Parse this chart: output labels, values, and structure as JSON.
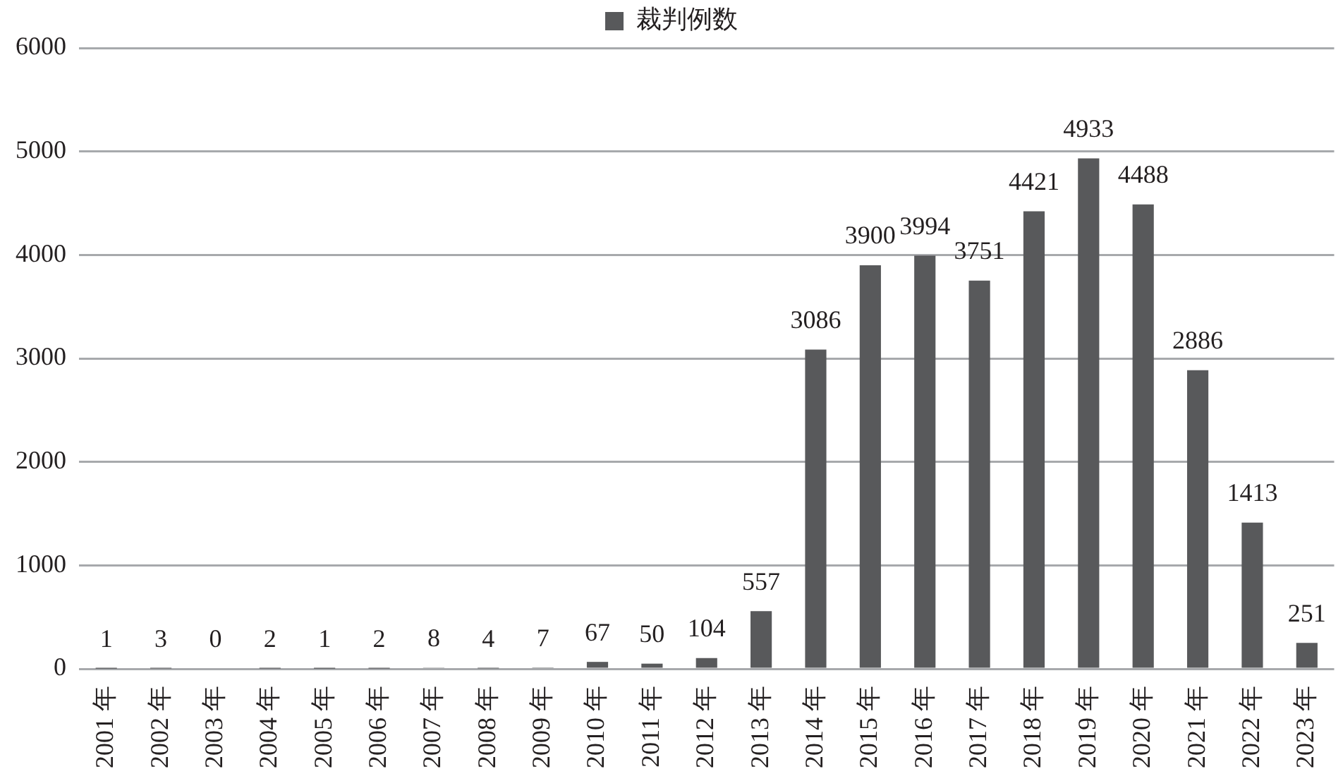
{
  "chart_data": {
    "type": "bar",
    "categories": [
      "2001 年",
      "2002 年",
      "2003 年",
      "2004 年",
      "2005 年",
      "2006 年",
      "2007 年",
      "2008 年",
      "2009 年",
      "2010 年",
      "2011 年",
      "2012 年",
      "2013 年",
      "2014 年",
      "2015 年",
      "2016 年",
      "2017 年",
      "2018 年",
      "2019 年",
      "2020 年",
      "2021 年",
      "2022 年",
      "2023 年"
    ],
    "series": [
      {
        "name": "裁判例数",
        "color": "#58595b",
        "values": [
          1,
          3,
          0,
          2,
          1,
          2,
          8,
          4,
          7,
          67,
          50,
          104,
          557,
          3086,
          3900,
          3994,
          3751,
          4421,
          4933,
          4488,
          2886,
          1413,
          251
        ]
      }
    ],
    "ylim": [
      0,
      6000
    ],
    "yticks": [
      0,
      1000,
      2000,
      3000,
      4000,
      5000,
      6000
    ],
    "grid": "y",
    "legend": "top",
    "data_labels": true
  }
}
